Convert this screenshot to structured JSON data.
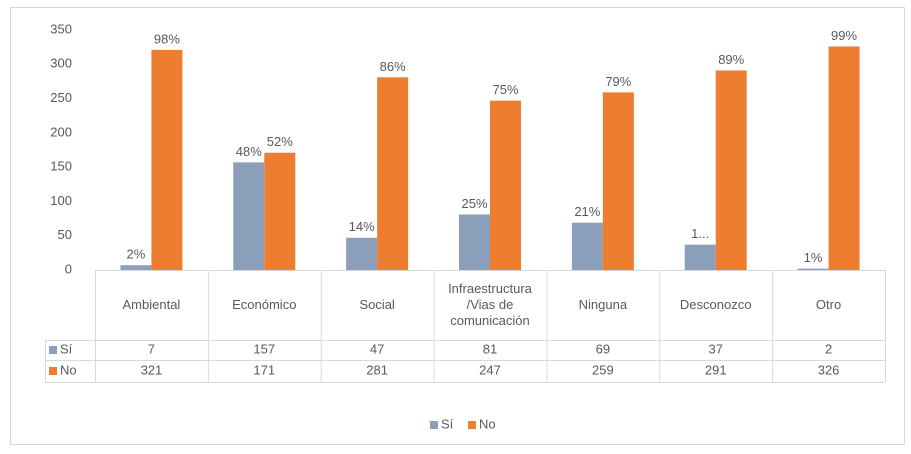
{
  "chart_data": {
    "type": "bar",
    "categories": [
      "Ambiental",
      "Económico",
      "Social",
      "Infraestructura /Vias de comunicación",
      "Ninguna",
      "Desconozco",
      "Otro"
    ],
    "series": [
      {
        "name": "Sí",
        "color": "#8c9fba",
        "values": [
          7,
          157,
          47,
          81,
          69,
          37,
          2
        ],
        "value_labels": [
          "2%",
          "48%",
          "14%",
          "25%",
          "21%",
          "1...",
          "1%"
        ]
      },
      {
        "name": "No",
        "color": "#ed7d31",
        "values": [
          321,
          171,
          281,
          247,
          259,
          291,
          326
        ],
        "value_labels": [
          "98%",
          "52%",
          "86%",
          "75%",
          "79%",
          "89%",
          "99%"
        ]
      }
    ],
    "ylim": [
      0,
      350
    ],
    "yticks": [
      0,
      50,
      100,
      150,
      200,
      250,
      300,
      350
    ],
    "grid": false,
    "legend": "bottom"
  }
}
